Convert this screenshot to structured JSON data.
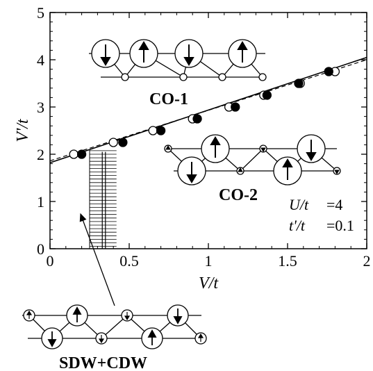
{
  "chart_data": {
    "type": "scatter",
    "xlabel": "V/t",
    "ylabel": "V'/t",
    "xlim": [
      0,
      2
    ],
    "ylim": [
      0,
      5
    ],
    "x_ticks": [
      "0",
      "0.5",
      "1",
      "1.5",
      "2"
    ],
    "y_ticks": [
      "0",
      "1",
      "2",
      "3",
      "4",
      "5"
    ],
    "series": [
      {
        "marker": "open-circle",
        "points": [
          [
            0.15,
            2.0
          ],
          [
            0.4,
            2.25
          ],
          [
            0.65,
            2.5
          ],
          [
            0.9,
            2.75
          ],
          [
            1.13,
            3.0
          ],
          [
            1.35,
            3.25
          ],
          [
            1.58,
            3.5
          ],
          [
            1.8,
            3.75
          ]
        ]
      },
      {
        "marker": "filled-circle",
        "points": [
          [
            0.2,
            2.0
          ],
          [
            0.46,
            2.25
          ],
          [
            0.7,
            2.5
          ],
          [
            0.93,
            2.75
          ],
          [
            1.17,
            3.0
          ],
          [
            1.37,
            3.25
          ],
          [
            1.57,
            3.5
          ],
          [
            1.76,
            3.75
          ]
        ]
      }
    ],
    "boundary_solid": [
      [
        0,
        1.82
      ],
      [
        2,
        4.05
      ]
    ],
    "boundary_dashed": [
      [
        0,
        1.86
      ],
      [
        2,
        4.0
      ]
    ],
    "region_labels": {
      "co1": "CO-1",
      "co2": "CO-2",
      "sdw_cdw": "SDW+CDW"
    },
    "parameters": {
      "u_label": "U/t",
      "u_value": "=4",
      "tp_label": "t'/t",
      "tp_value": "=0.1"
    },
    "hatched_region": {
      "x": [
        0.25,
        0.42
      ],
      "y": [
        0,
        2.1
      ],
      "inner_line_x": [
        0.33,
        0.35
      ]
    }
  }
}
